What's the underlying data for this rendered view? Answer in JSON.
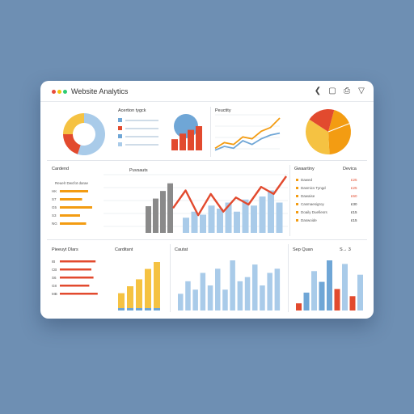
{
  "window": {
    "title": "Website Analytics",
    "dot_colors": [
      "#e74c3c",
      "#f1c40f",
      "#2ecc71"
    ],
    "toolbar_icons": [
      "back-icon",
      "copy-icon",
      "share-icon",
      "filter-icon"
    ],
    "toolbar_glyphs": [
      "❮",
      "▢",
      "⎙",
      "▽"
    ]
  },
  "colors": {
    "blue": "#a9cbe9",
    "blue_dark": "#6fa6d6",
    "red": "#e24a2e",
    "orange": "#f39c12",
    "yellow": "#f5c242",
    "gray": "#8a8a8a"
  },
  "top_row": {
    "donut": {
      "values": [
        0.55,
        0.2,
        0.25
      ]
    },
    "legend_panel": {
      "title": "Acertion tygck",
      "items": [
        "Item",
        "Item",
        "Item",
        "Item"
      ]
    },
    "combo": {
      "bars": [
        6,
        9,
        11,
        13
      ]
    },
    "line_panel": {
      "title": "Peuctity",
      "series_a": [
        2,
        5,
        4,
        8,
        7,
        11,
        13,
        18
      ],
      "series_b": [
        1,
        3,
        2,
        6,
        4,
        7,
        9,
        10
      ]
    },
    "pie": {
      "values": [
        0.45,
        0.35,
        0.2
      ]
    }
  },
  "middle_row": {
    "left_panel": {
      "title": "Cardend",
      "subtitle": "Reuelr Dwcfot darae",
      "labels": [
        "HK",
        "S7",
        "G5",
        "S3",
        "NG"
      ],
      "bar_values": [
        0.7,
        0.55,
        0.8,
        0.5,
        0.65
      ]
    },
    "main_chart": {
      "label": "Puvsauts",
      "gray_bars": [
        7,
        9,
        11,
        13
      ],
      "blue_bars": [
        5,
        7,
        6,
        9,
        8,
        10,
        7,
        11,
        9,
        12,
        14,
        10
      ],
      "red_line": [
        7,
        12,
        5,
        11,
        6,
        10,
        8,
        13,
        11,
        16
      ]
    },
    "right_panel": {
      "title": "Gwaartiny",
      "value_title": "Devica",
      "rows": [
        {
          "label": "Dawed",
          "value": "£25",
          "color": "#e24a2e"
        },
        {
          "label": "Dasmics Tyngd",
          "value": "£25",
          "color": "#e24a2e"
        },
        {
          "label": "Dawaise",
          "value": "£60",
          "color": "#e24a2e"
        },
        {
          "label": "Casmaesigroy",
          "value": "£30",
          "color": "#333333"
        },
        {
          "label": "Doaily Duefiesrs",
          "value": "£15",
          "color": "#333333"
        },
        {
          "label": "Daswoide",
          "value": "£15",
          "color": "#333333"
        }
      ]
    }
  },
  "bottom_row": {
    "bar_list": {
      "title": "Pieeuyt Dlars",
      "labels": [
        "IB",
        "CB",
        "S6",
        "G8",
        "MB"
      ],
      "values": [
        0.85,
        0.75,
        0.8,
        0.7,
        0.9
      ]
    },
    "column_panel": {
      "title": "Carditant",
      "values": [
        5,
        7,
        9,
        12,
        14
      ]
    },
    "blue_panel": {
      "title": "Cautat",
      "values": [
        4,
        7,
        5,
        9,
        6,
        10,
        5,
        12,
        7,
        8,
        11,
        6,
        9,
        10
      ]
    },
    "mixed_panel": {
      "title": "Sep Quan",
      "value": "S→ 3",
      "values": [
        2,
        5,
        11,
        8,
        14,
        6,
        13,
        4,
        10
      ],
      "colors": [
        "#e24a2e",
        "#6fa6d6",
        "#a9cbe9",
        "#6fa6d6",
        "#6fa6d6",
        "#e24a2e",
        "#a9cbe9",
        "#e24a2e",
        "#a9cbe9"
      ]
    }
  }
}
